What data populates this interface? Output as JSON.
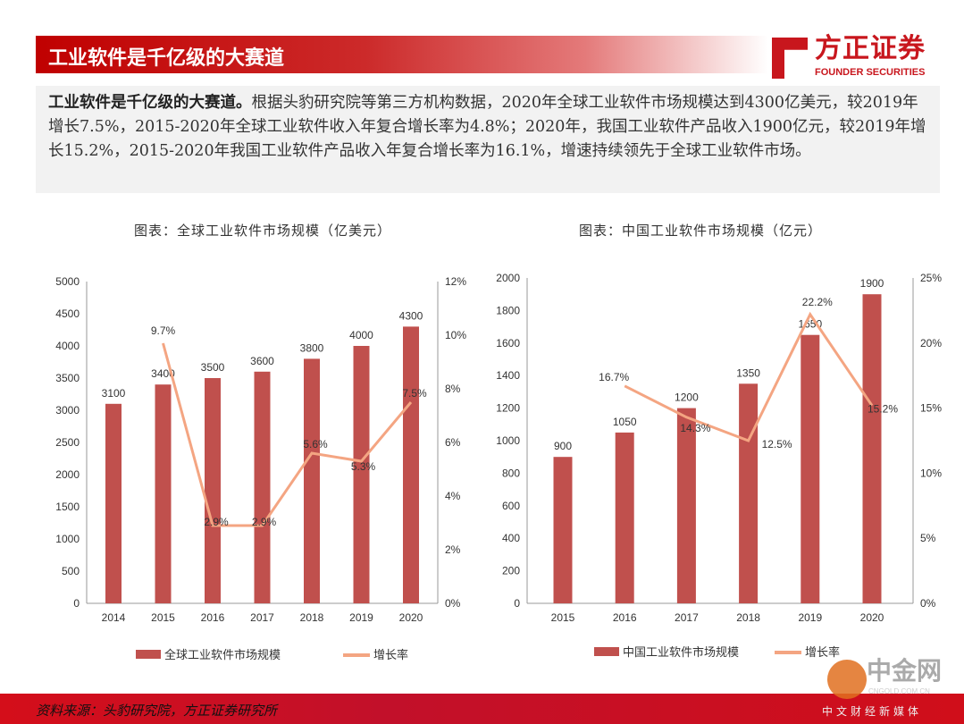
{
  "header": {
    "title": "工业软件是千亿级的大赛道"
  },
  "logo": {
    "cn": "方正证券",
    "en": "FOUNDER SECURITIES"
  },
  "summary": {
    "lead": "工业软件是千亿级的大赛道。",
    "body": "根据头豹研究院等第三方机构数据，2020年全球工业软件市场规模达到4300亿美元，较2019年增长7.5%，2015-2020年全球工业软件收入年复合增长率为4.8%；2020年，我国工业软件产品收入1900亿元，较2019年增长15.2%，2015-2020年我国工业软件产品收入年复合增长率为16.1%，增速持续领先于全球工业软件市场。"
  },
  "chart_data": [
    {
      "type": "bar+line",
      "title": "图表：全球工业软件市场规模（亿美元）",
      "categories": [
        "2014",
        "2015",
        "2016",
        "2017",
        "2018",
        "2019",
        "2020"
      ],
      "series": [
        {
          "name": "全球工业软件市场规模",
          "type": "bar",
          "axis": "left",
          "color": "#c0504d",
          "values": [
            3100,
            3400,
            3500,
            3600,
            3800,
            4000,
            4300
          ],
          "labels": [
            "3100",
            "3400",
            "3500",
            "3600",
            "3800",
            "4000",
            "4300"
          ]
        },
        {
          "name": "增长率",
          "type": "line",
          "axis": "right",
          "color": "#f4a582",
          "values": [
            null,
            9.7,
            2.9,
            2.9,
            5.6,
            5.3,
            7.5
          ],
          "labels": [
            "",
            "9.7%",
            "2.9%",
            "2.9%",
            "5.6%",
            "5.3%",
            "7.5%"
          ]
        }
      ],
      "ylim": [
        0,
        5000
      ],
      "yticks": [
        "0",
        "500",
        "1000",
        "1500",
        "2000",
        "2500",
        "3000",
        "3500",
        "4000",
        "4500",
        "5000"
      ],
      "y2lim": [
        0,
        12
      ],
      "y2ticks": [
        "0%",
        "2%",
        "4%",
        "6%",
        "8%",
        "10%",
        "12%"
      ],
      "grid": false,
      "legend": "bottom"
    },
    {
      "type": "bar+line",
      "title": "图表：中国工业软件市场规模（亿元）",
      "categories": [
        "2015",
        "2016",
        "2017",
        "2018",
        "2019",
        "2020"
      ],
      "series": [
        {
          "name": "中国工业软件市场规模",
          "type": "bar",
          "axis": "left",
          "color": "#c0504d",
          "values": [
            900,
            1050,
            1200,
            1350,
            1650,
            1900
          ],
          "labels": [
            "900",
            "1050",
            "1200",
            "1350",
            "1650",
            "1900"
          ]
        },
        {
          "name": "增长率",
          "type": "line",
          "axis": "right",
          "color": "#f4a582",
          "values": [
            null,
            16.7,
            14.3,
            12.5,
            22.2,
            15.2
          ],
          "labels": [
            "",
            "16.7%",
            "14.3%",
            "12.5%",
            "22.2%",
            "15.2%"
          ]
        }
      ],
      "ylim": [
        0,
        2000
      ],
      "yticks": [
        "0",
        "200",
        "400",
        "600",
        "800",
        "1000",
        "1200",
        "1400",
        "1600",
        "1800",
        "2000"
      ],
      "y2lim": [
        0,
        25
      ],
      "y2ticks": [
        "0%",
        "5%",
        "10%",
        "15%",
        "20%",
        "25%"
      ],
      "grid": false,
      "legend": "bottom"
    }
  ],
  "footer": {
    "source": "资料来源：头豹研究院，方正证券研究所"
  },
  "watermark": {
    "name": "中金网",
    "url": "CNGOLD.COM.CN",
    "slogan": "中文财经新媒体"
  }
}
